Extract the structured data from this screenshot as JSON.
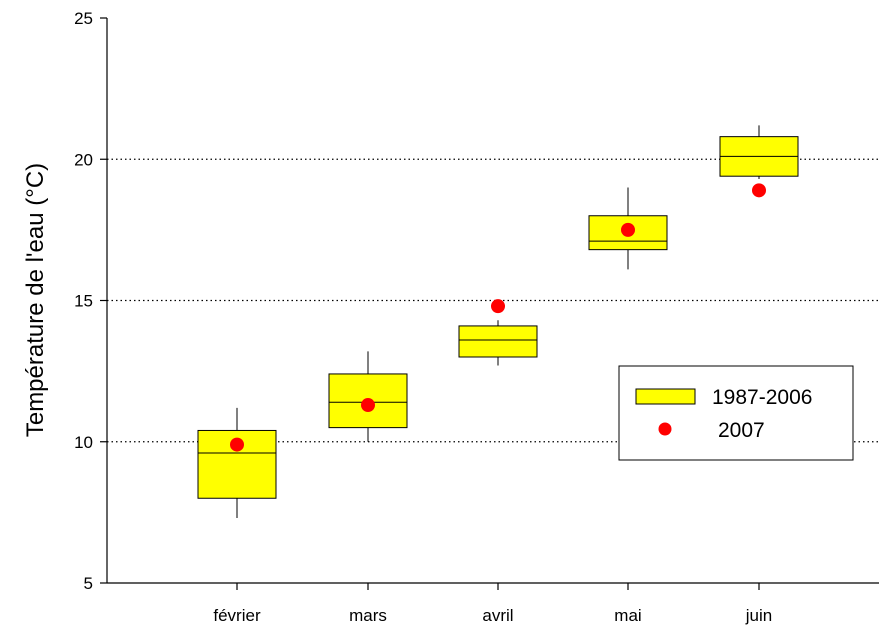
{
  "chart_data": {
    "type": "box",
    "title": "",
    "xlabel": "",
    "ylabel": "Température de l'eau (°C)",
    "ylim": [
      5,
      25
    ],
    "yticks": [
      5,
      10,
      15,
      20,
      25
    ],
    "gridlines_y": [
      10,
      15,
      20
    ],
    "grid": "dotted horizontal at 10, 15, 20",
    "categories": [
      "février",
      "mars",
      "avril",
      "mai",
      "juin"
    ],
    "series": [
      {
        "name": "1987-2006",
        "kind": "box",
        "color": "#ffff00",
        "boxes": [
          {
            "category": "février",
            "whisker_low": 7.3,
            "q1": 8.0,
            "median": 9.6,
            "q3": 10.4,
            "whisker_high": 11.2
          },
          {
            "category": "mars",
            "whisker_low": 10.0,
            "q1": 10.5,
            "median": 11.4,
            "q3": 12.4,
            "whisker_high": 13.2
          },
          {
            "category": "avril",
            "whisker_low": 12.7,
            "q1": 13.0,
            "median": 13.6,
            "q3": 14.1,
            "whisker_high": 14.3
          },
          {
            "category": "mai",
            "whisker_low": 16.1,
            "q1": 16.8,
            "median": 17.1,
            "q3": 18.0,
            "whisker_high": 19.0
          },
          {
            "category": "juin",
            "whisker_low": 19.3,
            "q1": 19.4,
            "median": 20.1,
            "q3": 20.8,
            "whisker_high": 21.2
          }
        ]
      },
      {
        "name": "2007",
        "kind": "point",
        "color": "#ff0000",
        "values": [
          9.9,
          11.3,
          14.8,
          17.5,
          18.9
        ]
      }
    ],
    "legend": {
      "position": "right",
      "entries": [
        "1987-2006",
        "2007"
      ]
    }
  }
}
